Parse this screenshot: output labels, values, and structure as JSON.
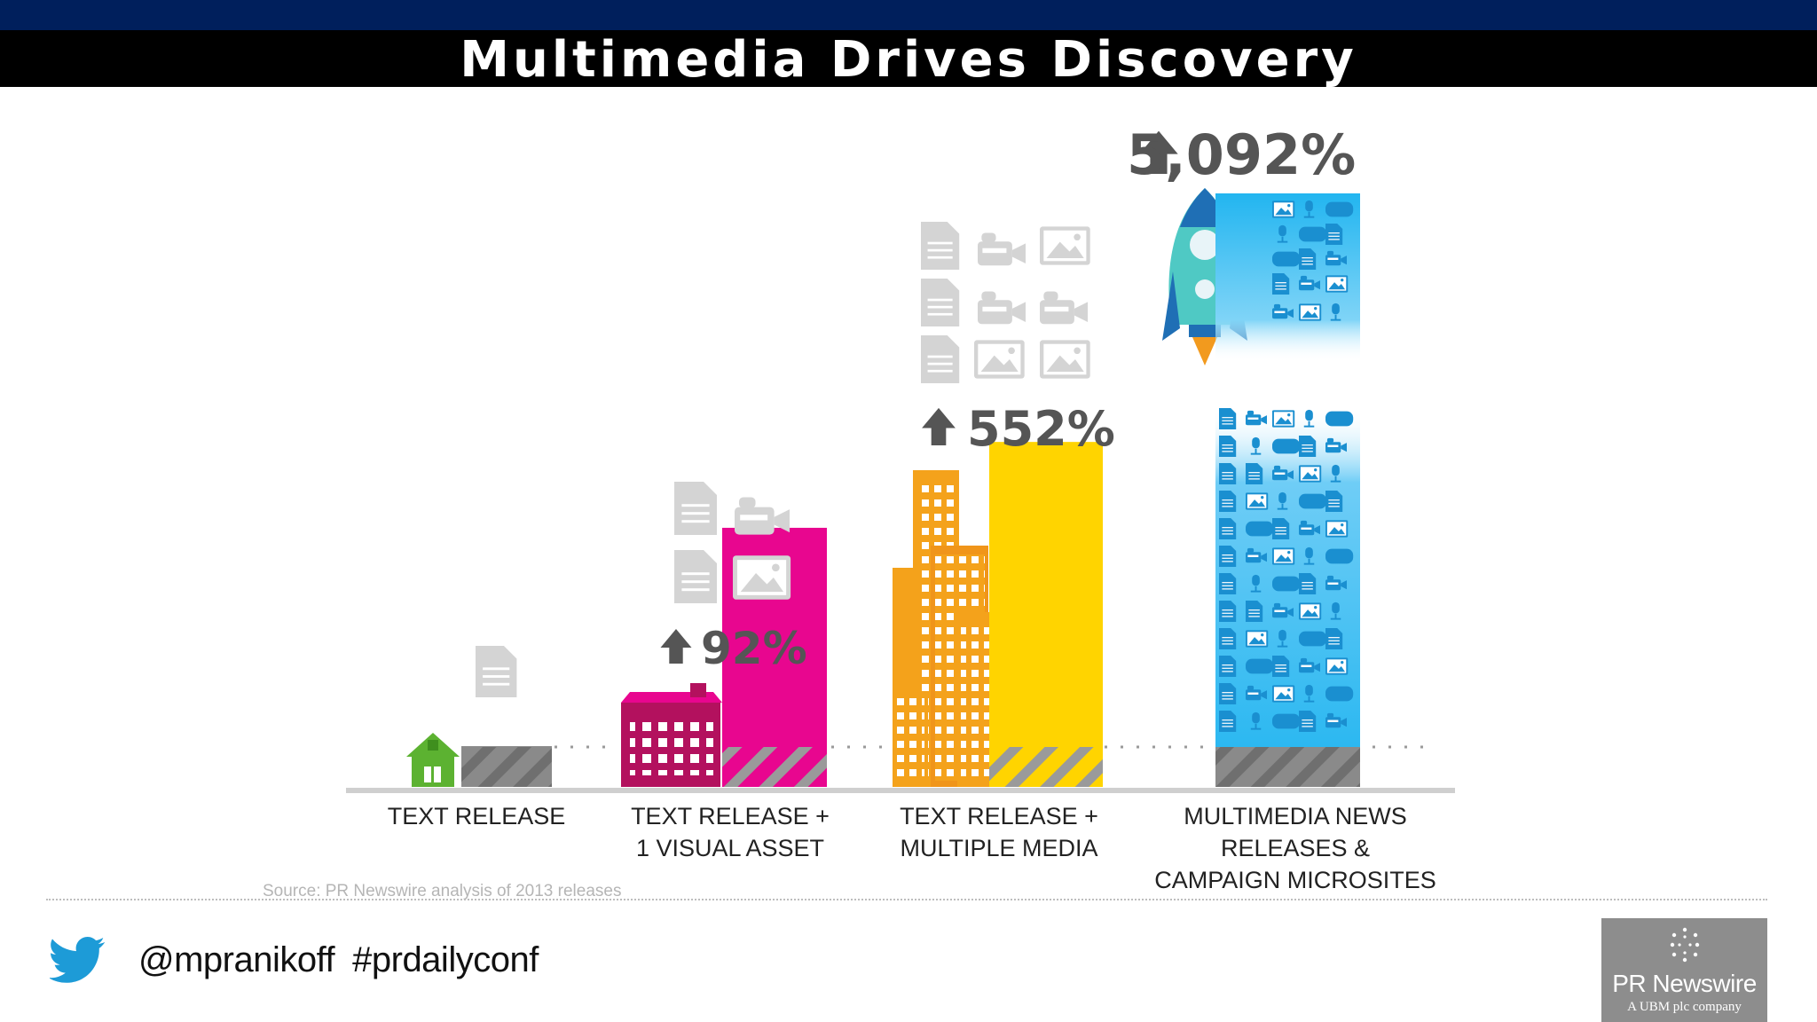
{
  "title": "Multimedia Drives Discovery",
  "colors": {
    "top_bar": "#001f5c",
    "title_bar": "#000000",
    "text_release": "#8e8e8e",
    "visual_asset": "#e8068f",
    "multiple_media": "#ffd400",
    "microsites": "#22b5f0",
    "icon_gray": "#d4d4d4",
    "icon_blue": "#1a8fd0"
  },
  "chart_data": {
    "type": "bar",
    "title": "Multimedia Drives Discovery",
    "categories": [
      "TEXT RELEASE",
      "TEXT RELEASE +\n1 VISUAL ASSET",
      "TEXT RELEASE +\nMULTIPLE MEDIA",
      "MULTIMEDIA NEWS\nRELEASES &\nCAMPAIGN MICROSITES"
    ],
    "values": [
      0,
      92,
      552,
      5092
    ],
    "data_labels": [
      "",
      "92%",
      "552%",
      "5,092%"
    ],
    "value_unit": "percent increase",
    "scale": "non-linear (illustrative)",
    "grid": false,
    "legend": "none",
    "icons": [
      [
        "document-icon"
      ],
      [
        "document-icon",
        "video-camera-icon",
        "document-icon",
        "image-icon"
      ],
      [
        "document-icon",
        "video-camera-icon",
        "image-icon",
        "document-icon",
        "video-camera-icon",
        "video-camera-icon",
        "document-icon",
        "image-icon",
        "image-icon"
      ],
      [
        "document-icon",
        "video-camera-icon",
        "image-icon",
        "microphone-icon",
        "pdf-icon"
      ]
    ]
  },
  "source": "Source: PR Newswire analysis of 2013 releases",
  "social": {
    "icon": "twitter-bird-icon",
    "handle": "@mpranikoff",
    "hashtag": "#prdailyconf"
  },
  "logo": {
    "name": "PR Newswire",
    "subtitle": "A UBM plc company"
  }
}
